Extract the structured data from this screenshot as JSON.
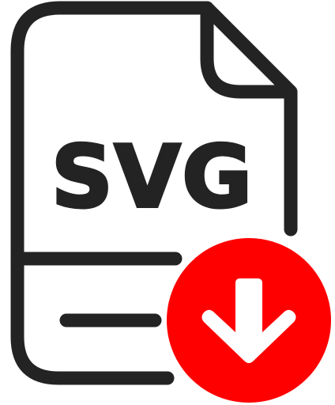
{
  "file": {
    "label": "SVG",
    "icon": "file-document-icon",
    "stroke_color": "#232323"
  },
  "badge": {
    "icon": "download-arrow-icon",
    "circle_color": "#FF0000",
    "arrow_color": "#FFFFFF"
  }
}
